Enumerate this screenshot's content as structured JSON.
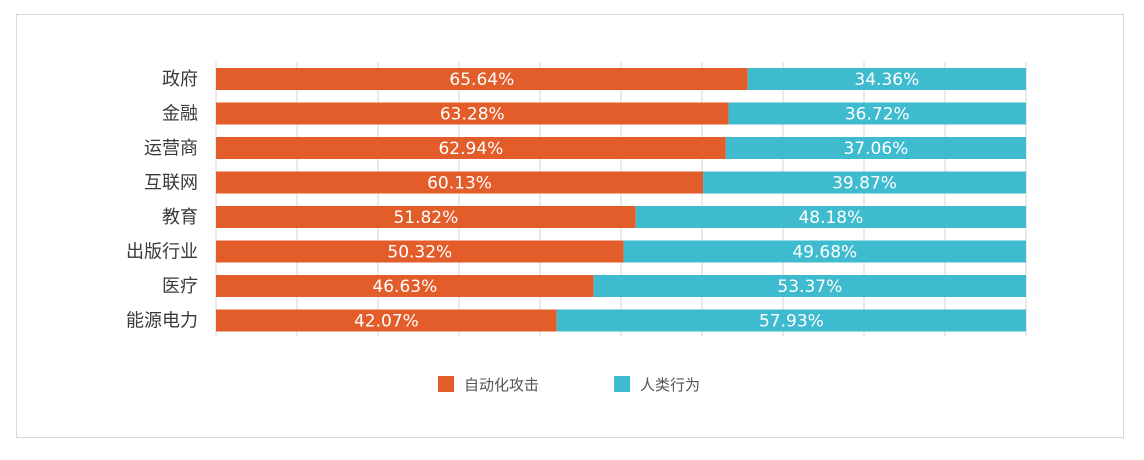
{
  "chart_data": {
    "type": "bar",
    "orientation": "horizontal",
    "stacked": true,
    "categories": [
      "政府",
      "金融",
      "运营商",
      "互联网",
      "教育",
      "出版行业",
      "医疗",
      "能源电力"
    ],
    "series": [
      {
        "name": "自动化攻击",
        "color": "#e35d2b",
        "values": [
          65.64,
          63.28,
          62.94,
          60.13,
          51.82,
          50.32,
          46.63,
          42.07
        ],
        "labels": [
          "65.64%",
          "63.28%",
          "62.94%",
          "60.13%",
          "51.82%",
          "50.32%",
          "46.63%",
          "42.07%"
        ]
      },
      {
        "name": "人类行为",
        "color": "#3fbbcf",
        "values": [
          34.36,
          36.72,
          37.06,
          39.87,
          48.18,
          49.68,
          53.37,
          57.93
        ],
        "labels": [
          "34.36%",
          "36.72%",
          "37.06%",
          "39.87%",
          "48.18%",
          "49.68%",
          "53.37%",
          "57.93%"
        ]
      }
    ],
    "xlim": [
      0,
      100
    ],
    "grid": true,
    "legend": "bottom-center",
    "title": "",
    "xlabel": "",
    "ylabel": ""
  }
}
